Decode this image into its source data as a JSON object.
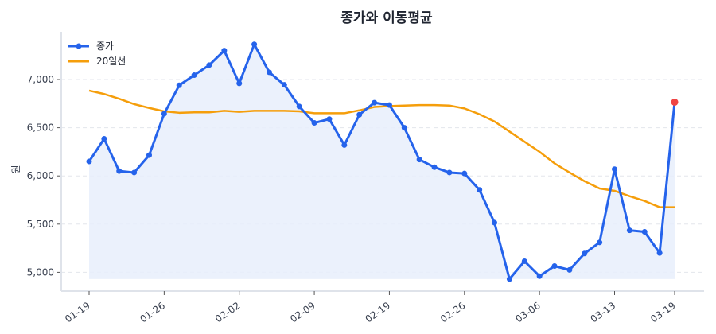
{
  "chart_data": {
    "type": "line",
    "title": "종가와 이동평균",
    "xlabel": "",
    "ylabel": "원",
    "ylim": [
      4820,
      7480
    ],
    "yticks": [
      5000,
      5500,
      6000,
      6500,
      7000
    ],
    "ytick_labels": [
      "5,000",
      "5,500",
      "6,000",
      "6,500",
      "7,000"
    ],
    "xtick_labels": [
      "01-19",
      "01-26",
      "02-02",
      "02-09",
      "02-19",
      "02-26",
      "03-06",
      "03-13",
      "03-19"
    ],
    "xtick_indices": [
      0,
      5,
      10,
      15,
      20,
      25,
      30,
      35,
      39
    ],
    "grid": "horizontal dashed",
    "legend_position": "upper left",
    "series": [
      {
        "name": "종가",
        "color": "#2563eb",
        "marker": "circle",
        "fill": "#e8eefc",
        "last_point_color": "#ef4444",
        "values": [
          6150,
          6385,
          6050,
          6035,
          6215,
          6645,
          6940,
          7045,
          7150,
          7300,
          6960,
          7365,
          7075,
          6945,
          6720,
          6550,
          6590,
          6320,
          6635,
          6760,
          6735,
          6500,
          6170,
          6090,
          6035,
          6025,
          5855,
          5515,
          4930,
          5115,
          4960,
          5065,
          5025,
          5195,
          5310,
          6070,
          5435,
          5420,
          5200,
          6765
        ]
      },
      {
        "name": "20일선",
        "color": "#f59e0b",
        "values": [
          6885,
          6850,
          6800,
          6745,
          6705,
          6670,
          6655,
          6660,
          6660,
          6675,
          6665,
          6675,
          6675,
          6675,
          6670,
          6650,
          6650,
          6650,
          6680,
          6715,
          6725,
          6730,
          6735,
          6735,
          6730,
          6700,
          6640,
          6565,
          6460,
          6355,
          6250,
          6130,
          6035,
          5945,
          5870,
          5845,
          5790,
          5740,
          5675,
          5675
        ]
      }
    ]
  },
  "legend": {
    "items": [
      {
        "label": "종가"
      },
      {
        "label": "20일선"
      }
    ]
  }
}
